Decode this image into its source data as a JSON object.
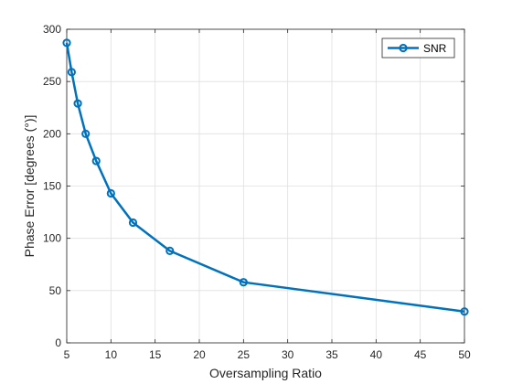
{
  "chart_data": {
    "type": "line",
    "title": "",
    "xlabel": "Oversampling Ratio",
    "ylabel": "Phase Error [degrees (°)]",
    "xlim": [
      5,
      50
    ],
    "ylim": [
      0,
      300
    ],
    "xticks": [
      5,
      10,
      15,
      20,
      25,
      30,
      35,
      40,
      45,
      50
    ],
    "yticks": [
      0,
      50,
      100,
      150,
      200,
      250,
      300
    ],
    "grid": true,
    "legend_position": "top-right",
    "series": [
      {
        "name": "SNR",
        "color": "#0072BD",
        "marker": "circle",
        "x": [
          5,
          5.556,
          6.25,
          7.143,
          8.333,
          10,
          12.5,
          16.667,
          25,
          50
        ],
        "y": [
          287,
          259,
          229,
          200,
          174,
          143,
          115,
          88,
          58,
          30
        ]
      }
    ]
  }
}
